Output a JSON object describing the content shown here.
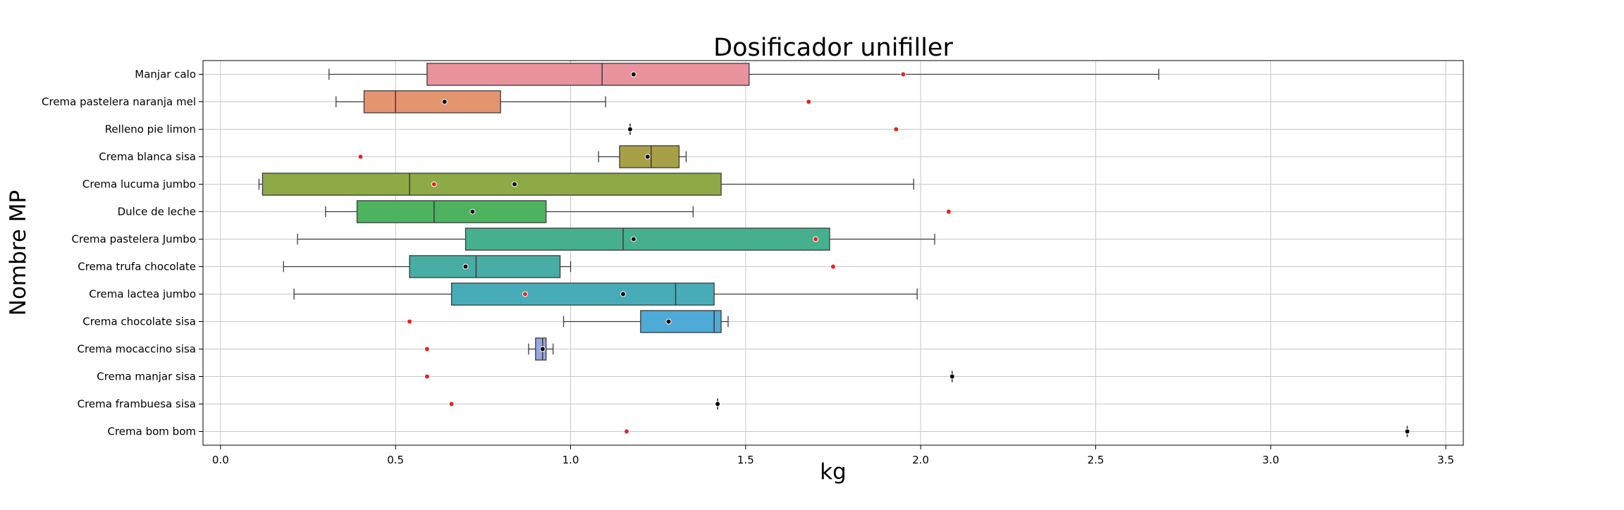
{
  "chart_data": {
    "type": "boxplot",
    "orientation": "horizontal",
    "title": "Dosificador unifiller",
    "xlabel": "kg",
    "ylabel": "Nombre MP",
    "xlim": [
      -0.05,
      3.55
    ],
    "xticks": [
      "0.0",
      "0.5",
      "1.0",
      "1.5",
      "2.0",
      "2.5",
      "3.0",
      "3.5"
    ],
    "grid": true,
    "categories": [
      {
        "label": "Manjar calo",
        "color": "#e8939e",
        "whisker_low": 0.31,
        "q1": 0.59,
        "median": 1.09,
        "q3": 1.51,
        "whisker_high": 2.68,
        "mean": 1.18,
        "reference": 1.95
      },
      {
        "label": "Crema pastelera naranja mel",
        "color": "#e59470",
        "whisker_low": 0.33,
        "q1": 0.41,
        "median": 0.5,
        "q3": 0.8,
        "whisker_high": 1.1,
        "mean": 0.64,
        "reference": 1.68
      },
      {
        "label": "Relleno pie limon",
        "color": "#cfa15f",
        "whisker_low": 1.17,
        "q1": 1.17,
        "median": 1.17,
        "q3": 1.17,
        "whisker_high": 1.17,
        "mean": 1.17,
        "reference": 1.93
      },
      {
        "label": "Crema blanca sisa",
        "color": "#a8a046",
        "whisker_low": 1.08,
        "q1": 1.14,
        "median": 1.23,
        "q3": 1.31,
        "whisker_high": 1.33,
        "mean": 1.22,
        "reference": 0.4
      },
      {
        "label": "Crema lucuma jumbo",
        "color": "#8daa47",
        "whisker_low": 0.11,
        "q1": 0.12,
        "median": 0.54,
        "q3": 1.43,
        "whisker_high": 1.98,
        "mean": 0.84,
        "reference": 0.61
      },
      {
        "label": "Dulce de leche",
        "color": "#4db35f",
        "whisker_low": 0.3,
        "q1": 0.39,
        "median": 0.61,
        "q3": 0.93,
        "whisker_high": 1.35,
        "mean": 0.72,
        "reference": 2.08
      },
      {
        "label": "Crema pastelera Jumbo",
        "color": "#46b08e",
        "whisker_low": 0.22,
        "q1": 0.7,
        "median": 1.15,
        "q3": 1.74,
        "whisker_high": 2.04,
        "mean": 1.18,
        "reference": 1.7
      },
      {
        "label": "Crema trufa chocolate",
        "color": "#47ada5",
        "whisker_low": 0.18,
        "q1": 0.54,
        "median": 0.73,
        "q3": 0.97,
        "whisker_high": 1.0,
        "mean": 0.7,
        "reference": 1.75
      },
      {
        "label": "Crema lactea jumbo",
        "color": "#48acb8",
        "whisker_low": 0.21,
        "q1": 0.66,
        "median": 1.3,
        "q3": 1.41,
        "whisker_high": 1.99,
        "mean": 1.15,
        "reference": 0.87
      },
      {
        "label": "Crema chocolate sisa",
        "color": "#4eaad6",
        "whisker_low": 0.98,
        "q1": 1.2,
        "median": 1.41,
        "q3": 1.43,
        "whisker_high": 1.45,
        "mean": 1.28,
        "reference": 0.54
      },
      {
        "label": "Crema mocaccino sisa",
        "color": "#97a7e3",
        "whisker_low": 0.88,
        "q1": 0.9,
        "median": 0.92,
        "q3": 0.93,
        "whisker_high": 0.95,
        "mean": 0.92,
        "reference": 0.59
      },
      {
        "label": "Crema manjar sisa",
        "color": "#c49ae6",
        "whisker_low": 2.09,
        "q1": 2.09,
        "median": 2.09,
        "q3": 2.09,
        "whisker_high": 2.09,
        "mean": 2.09,
        "reference": 0.59
      },
      {
        "label": "Crema frambuesa sisa",
        "color": "#e28fd6",
        "whisker_low": 1.42,
        "q1": 1.42,
        "median": 1.42,
        "q3": 1.42,
        "whisker_high": 1.42,
        "mean": 1.42,
        "reference": 0.66
      },
      {
        "label": "Crema bom bom",
        "color": "#eb8fba",
        "whisker_low": 3.39,
        "q1": 3.39,
        "median": 3.39,
        "q3": 3.39,
        "whisker_high": 3.39,
        "mean": 3.39,
        "reference": 1.16
      }
    ],
    "colors": {
      "mean_marker": "#000000",
      "reference_marker": "#e8231e",
      "grid": "#c8c8c8",
      "edge": "#3b3b3b"
    }
  }
}
